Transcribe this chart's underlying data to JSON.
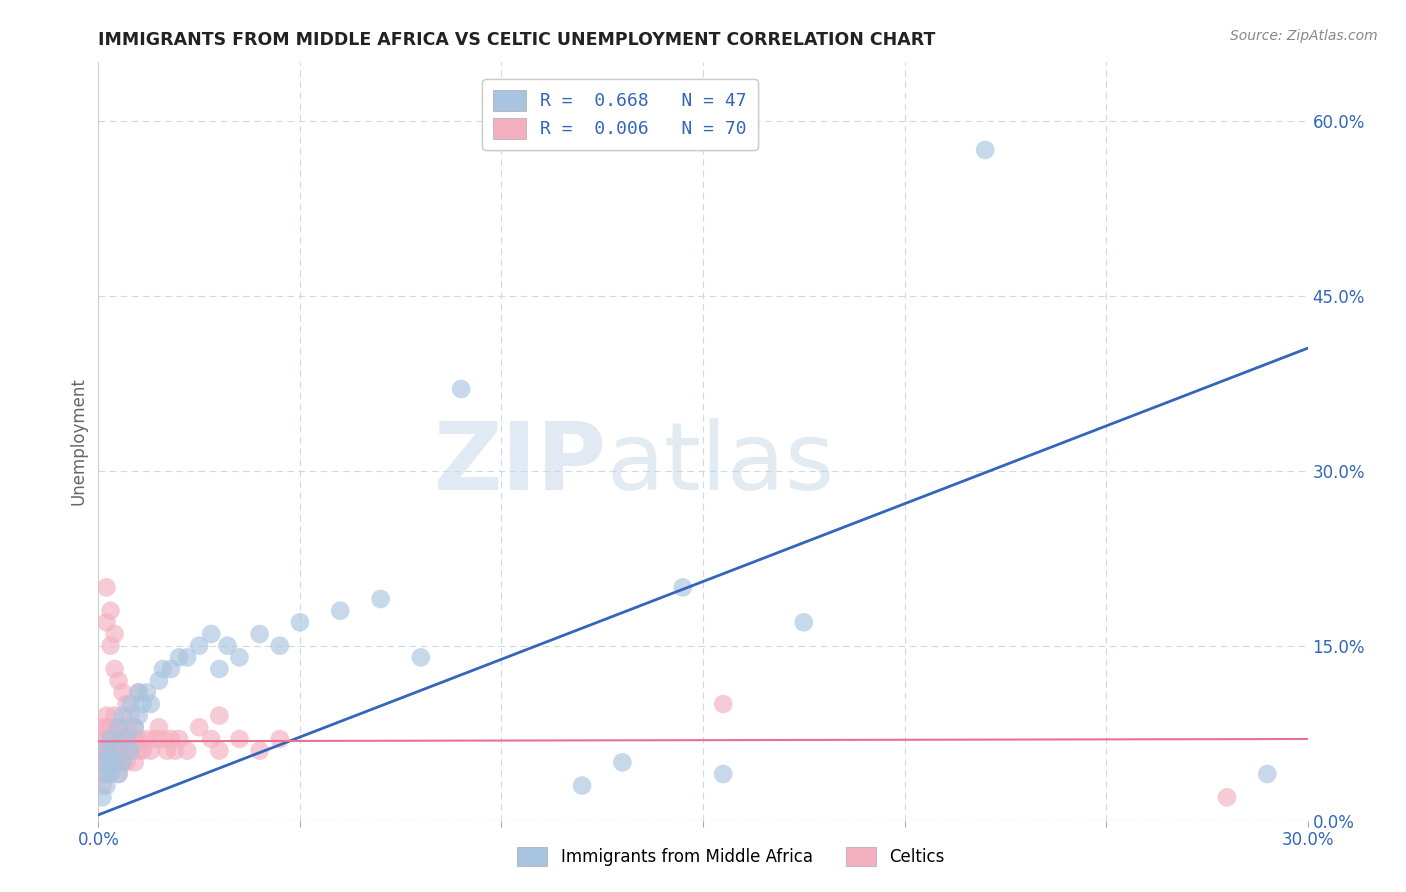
{
  "title": "IMMIGRANTS FROM MIDDLE AFRICA VS CELTIC UNEMPLOYMENT CORRELATION CHART",
  "source": "Source: ZipAtlas.com",
  "ylabel": "Unemployment",
  "xlim": [
    0.0,
    0.3
  ],
  "ylim": [
    0.0,
    0.65
  ],
  "right_yticks": [
    0.0,
    0.15,
    0.3,
    0.45,
    0.6
  ],
  "right_yticklabels": [
    "0.0%",
    "15.0%",
    "30.0%",
    "45.0%",
    "60.0%"
  ],
  "xticks": [
    0.0,
    0.05,
    0.1,
    0.15,
    0.2,
    0.25,
    0.3
  ],
  "xticklabels": [
    "0.0%",
    "",
    "",
    "",
    "",
    "",
    "30.0%"
  ],
  "background_color": "#ffffff",
  "grid_color": "#d0d8e8",
  "watermark_zip": "ZIP",
  "watermark_atlas": "atlas",
  "legend_label1": "R =  0.668   N = 47",
  "legend_label2": "R =  0.006   N = 70",
  "blue_color": "#a8c4e0",
  "pink_color": "#f4afc0",
  "line_blue": "#3366bb",
  "line_pink": "#e87090",
  "bottom_label1": "Immigrants from Middle Africa",
  "bottom_label2": "Celtics",
  "blue_line_x0": 0.0,
  "blue_line_y0": 0.005,
  "blue_line_x1": 0.3,
  "blue_line_y1": 0.405,
  "pink_line_x0": 0.0,
  "pink_line_y0": 0.068,
  "pink_line_x1": 0.3,
  "pink_line_y1": 0.07,
  "blue_points_x": [
    0.001,
    0.001,
    0.002,
    0.002,
    0.002,
    0.003,
    0.003,
    0.003,
    0.004,
    0.004,
    0.005,
    0.005,
    0.006,
    0.006,
    0.007,
    0.008,
    0.008,
    0.009,
    0.01,
    0.01,
    0.011,
    0.012,
    0.013,
    0.015,
    0.016,
    0.018,
    0.02,
    0.022,
    0.025,
    0.028,
    0.03,
    0.032,
    0.035,
    0.04,
    0.045,
    0.05,
    0.06,
    0.07,
    0.08,
    0.09,
    0.12,
    0.13,
    0.145,
    0.155,
    0.175,
    0.22,
    0.29
  ],
  "blue_points_y": [
    0.02,
    0.05,
    0.03,
    0.06,
    0.04,
    0.04,
    0.07,
    0.05,
    0.05,
    0.06,
    0.04,
    0.08,
    0.05,
    0.09,
    0.07,
    0.06,
    0.1,
    0.08,
    0.09,
    0.11,
    0.1,
    0.11,
    0.1,
    0.12,
    0.13,
    0.13,
    0.14,
    0.14,
    0.15,
    0.16,
    0.13,
    0.15,
    0.14,
    0.16,
    0.15,
    0.17,
    0.18,
    0.19,
    0.14,
    0.37,
    0.03,
    0.05,
    0.2,
    0.04,
    0.17,
    0.575,
    0.04
  ],
  "pink_points_x": [
    0.001,
    0.001,
    0.001,
    0.001,
    0.001,
    0.002,
    0.002,
    0.002,
    0.002,
    0.002,
    0.003,
    0.003,
    0.003,
    0.003,
    0.004,
    0.004,
    0.004,
    0.004,
    0.005,
    0.005,
    0.005,
    0.005,
    0.006,
    0.006,
    0.006,
    0.007,
    0.007,
    0.007,
    0.008,
    0.008,
    0.009,
    0.009,
    0.01,
    0.01,
    0.011,
    0.012,
    0.013,
    0.014,
    0.015,
    0.016,
    0.017,
    0.018,
    0.019,
    0.02,
    0.022,
    0.025,
    0.028,
    0.03,
    0.035,
    0.04,
    0.002,
    0.003,
    0.004,
    0.005,
    0.006,
    0.007,
    0.008,
    0.009,
    0.002,
    0.003,
    0.004,
    0.001,
    0.002,
    0.003,
    0.005,
    0.01,
    0.03,
    0.045,
    0.28,
    0.155
  ],
  "pink_points_y": [
    0.04,
    0.06,
    0.05,
    0.07,
    0.08,
    0.05,
    0.06,
    0.07,
    0.08,
    0.09,
    0.05,
    0.06,
    0.07,
    0.08,
    0.05,
    0.06,
    0.07,
    0.09,
    0.05,
    0.06,
    0.07,
    0.08,
    0.05,
    0.06,
    0.07,
    0.05,
    0.06,
    0.08,
    0.06,
    0.07,
    0.05,
    0.07,
    0.06,
    0.07,
    0.06,
    0.07,
    0.06,
    0.07,
    0.08,
    0.07,
    0.06,
    0.07,
    0.06,
    0.07,
    0.06,
    0.08,
    0.07,
    0.06,
    0.07,
    0.06,
    0.17,
    0.15,
    0.13,
    0.12,
    0.11,
    0.1,
    0.09,
    0.08,
    0.2,
    0.18,
    0.16,
    0.03,
    0.04,
    0.05,
    0.04,
    0.11,
    0.09,
    0.07,
    0.02,
    0.1
  ]
}
